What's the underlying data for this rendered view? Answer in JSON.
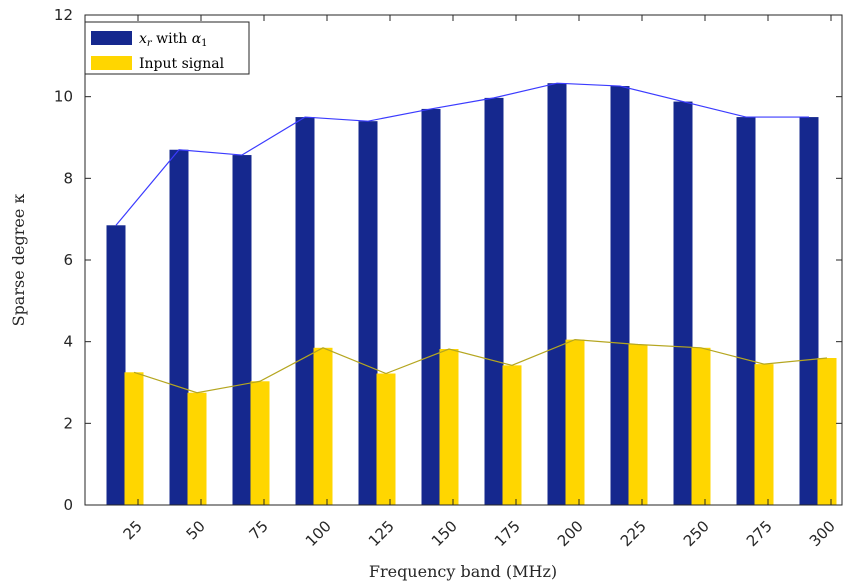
{
  "chart_data": {
    "type": "bar",
    "categories": [
      "25",
      "50",
      "75",
      "100",
      "125",
      "150",
      "175",
      "200",
      "225",
      "250",
      "275",
      "300"
    ],
    "series": [
      {
        "name": "x_r with α_1",
        "color": "#15288e",
        "line_color": "#3b3bff",
        "values": [
          6.85,
          8.7,
          8.57,
          9.5,
          9.4,
          9.7,
          9.97,
          10.33,
          10.26,
          9.88,
          9.5,
          9.5
        ]
      },
      {
        "name": "Input signal",
        "color": "#ffd600",
        "line_color": "#b5a620",
        "values": [
          3.25,
          2.75,
          3.03,
          3.85,
          3.22,
          3.82,
          3.42,
          4.05,
          3.93,
          3.85,
          3.45,
          3.6
        ]
      }
    ],
    "xlabel": "Frequency band (MHz)",
    "ylabel": "Sparse degree κ",
    "ylim": [
      0,
      12
    ],
    "yticks": [
      "0",
      "2",
      "4",
      "6",
      "8",
      "10",
      "12"
    ],
    "grid": false,
    "legend_position": "top-left"
  },
  "legend": {
    "series1_main": "x",
    "series1_sub": "r",
    "series1_mid": " with ",
    "series1_alpha": "α",
    "series1_alpha_sub": "1",
    "series2": "Input signal"
  }
}
